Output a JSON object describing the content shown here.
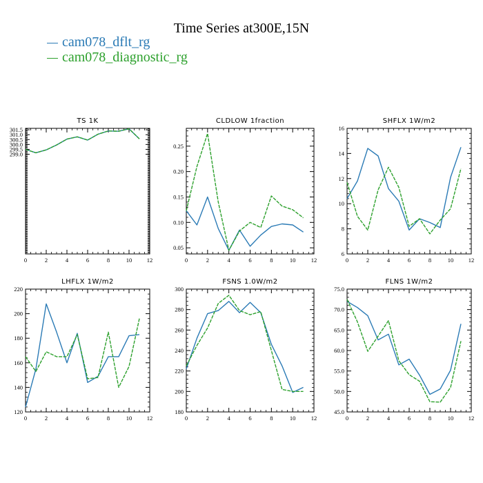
{
  "page_title": "Time Series at300E,15N",
  "colors": {
    "dflt": "#2a7ab5",
    "diag": "#2ca02c"
  },
  "legend": [
    {
      "label": "cam078_dflt_rg",
      "color": "#2a7ab5"
    },
    {
      "label": "cam078_diagnostic_rg",
      "color": "#2ca02c"
    }
  ],
  "chart_data": [
    {
      "type": "line",
      "title": "TS   1K",
      "x": [
        0,
        1,
        2,
        3,
        4,
        5,
        6,
        7,
        8,
        9,
        10,
        11
      ],
      "xlim": [
        0,
        12
      ],
      "xticks": [
        0,
        2,
        4,
        6,
        8,
        10,
        12
      ],
      "xtick_labels": [
        "0",
        "2",
        "4",
        "6",
        "8",
        "10",
        "12"
      ],
      "ylim": [
        288.8,
        301.65
      ],
      "yticks": [
        299.0,
        299.5,
        300.0,
        300.5,
        301.0,
        301.5
      ],
      "ytick_labels": [
        "299.0",
        "299.5",
        "300.0",
        "300.5",
        "301.0",
        "301.5"
      ],
      "series": [
        {
          "name": "cam078_dflt_rg",
          "values": [
            299.5,
            299.15,
            299.45,
            299.95,
            300.55,
            300.78,
            300.45,
            301.05,
            301.38,
            301.35,
            301.6,
            300.58
          ]
        },
        {
          "name": "cam078_diagnostic_rg",
          "values": [
            299.5,
            299.15,
            299.45,
            299.95,
            300.55,
            300.78,
            300.45,
            301.05,
            301.38,
            301.35,
            301.6,
            300.58
          ]
        }
      ]
    },
    {
      "type": "line",
      "title": "CLDLOW   1fraction",
      "x": [
        0,
        1,
        2,
        3,
        4,
        5,
        6,
        7,
        8,
        9,
        10,
        11
      ],
      "xlim": [
        0,
        12
      ],
      "xticks": [
        0,
        2,
        4,
        6,
        8,
        10,
        12
      ],
      "xtick_labels": [
        "0",
        "2",
        "4",
        "6",
        "8",
        "10",
        "12"
      ],
      "ylim": [
        0.038,
        0.285
      ],
      "yticks": [
        0.05,
        0.1,
        0.15,
        0.2,
        0.25
      ],
      "ytick_labels": [
        "0.05",
        "0.10",
        "0.15",
        "0.20",
        "0.25"
      ],
      "series": [
        {
          "name": "cam078_dflt_rg",
          "values": [
            0.123,
            0.095,
            0.15,
            0.088,
            0.045,
            0.085,
            0.053,
            0.075,
            0.092,
            0.097,
            0.095,
            0.081
          ]
        },
        {
          "name": "cam078_diagnostic_rg",
          "values": [
            0.123,
            0.21,
            0.275,
            0.14,
            0.045,
            0.083,
            0.1,
            0.09,
            0.152,
            0.132,
            0.125,
            0.109
          ]
        }
      ]
    },
    {
      "type": "line",
      "title": "SHFLX   1W/m2",
      "x": [
        0,
        1,
        2,
        3,
        4,
        5,
        6,
        7,
        8,
        9,
        10,
        11
      ],
      "xlim": [
        0,
        12
      ],
      "xticks": [
        0,
        2,
        4,
        6,
        8,
        10,
        12
      ],
      "xtick_labels": [
        "0",
        "2",
        "4",
        "6",
        "8",
        "10",
        "12"
      ],
      "ylim": [
        6,
        16
      ],
      "yticks": [
        6,
        8,
        10,
        12,
        14,
        16
      ],
      "ytick_labels": [
        "6",
        "8",
        "10",
        "12",
        "14",
        "16"
      ],
      "series": [
        {
          "name": "cam078_dflt_rg",
          "values": [
            10.4,
            11.8,
            14.4,
            13.8,
            11.2,
            10.2,
            7.9,
            8.8,
            8.5,
            8.1,
            12.1,
            14.5
          ]
        },
        {
          "name": "cam078_diagnostic_rg",
          "values": [
            11.7,
            9.0,
            7.9,
            11.1,
            12.9,
            11.3,
            8.2,
            8.8,
            7.6,
            8.7,
            9.6,
            12.8
          ]
        }
      ]
    },
    {
      "type": "line",
      "title": "LHFLX   1W/m2",
      "x": [
        0,
        1,
        2,
        3,
        4,
        5,
        6,
        7,
        8,
        9,
        10,
        11
      ],
      "xlim": [
        0,
        12
      ],
      "xticks": [
        0,
        2,
        4,
        6,
        8,
        10,
        12
      ],
      "xtick_labels": [
        "0",
        "2",
        "4",
        "6",
        "8",
        "10",
        "12"
      ],
      "ylim": [
        120,
        220
      ],
      "yticks": [
        120,
        140,
        160,
        180,
        200,
        220
      ],
      "ytick_labels": [
        "120",
        "140",
        "160",
        "180",
        "200",
        "220"
      ],
      "series": [
        {
          "name": "cam078_dflt_rg",
          "values": [
            124,
            155,
            208,
            185,
            160,
            184,
            144,
            149,
            165,
            165,
            182,
            183
          ]
        },
        {
          "name": "cam078_diagnostic_rg",
          "values": [
            165,
            153,
            169,
            165,
            165,
            183,
            147,
            148,
            185,
            140,
            157,
            196
          ]
        }
      ]
    },
    {
      "type": "line",
      "title": "FSNS   1.0W/m2",
      "x": [
        0,
        1,
        2,
        3,
        4,
        5,
        6,
        7,
        8,
        9,
        10,
        11
      ],
      "xlim": [
        0,
        12
      ],
      "xticks": [
        0,
        2,
        4,
        6,
        8,
        10,
        12
      ],
      "xtick_labels": [
        "0",
        "2",
        "4",
        "6",
        "8",
        "10",
        "12"
      ],
      "ylim": [
        180,
        300
      ],
      "yticks": [
        180,
        200,
        220,
        240,
        260,
        280,
        300
      ],
      "ytick_labels": [
        "180",
        "200",
        "220",
        "240",
        "260",
        "280",
        "300"
      ],
      "series": [
        {
          "name": "cam078_dflt_rg",
          "values": [
            222,
            252,
            276,
            279,
            288,
            277,
            287,
            277,
            246,
            225,
            199,
            204
          ]
        },
        {
          "name": "cam078_diagnostic_rg",
          "values": [
            225,
            245,
            262,
            286,
            294,
            279,
            275,
            278,
            240,
            202,
            200,
            200
          ]
        }
      ]
    },
    {
      "type": "line",
      "title": "FLNS   1W/m2",
      "x": [
        0,
        1,
        2,
        3,
        4,
        5,
        6,
        7,
        8,
        9,
        10,
        11
      ],
      "xlim": [
        0,
        12
      ],
      "xticks": [
        0,
        2,
        4,
        6,
        8,
        10,
        12
      ],
      "xtick_labels": [
        "0",
        "2",
        "4",
        "6",
        "8",
        "10",
        "12"
      ],
      "ylim": [
        45,
        75
      ],
      "yticks": [
        45,
        50,
        55,
        60,
        65,
        70,
        75
      ],
      "ytick_labels": [
        "45.0",
        "50.0",
        "55.0",
        "60.0",
        "65.0",
        "70.0",
        "75.0"
      ],
      "series": [
        {
          "name": "cam078_dflt_rg",
          "values": [
            72.0,
            70.5,
            68.5,
            62.6,
            64.0,
            56.5,
            57.9,
            54.0,
            49.3,
            50.6,
            55.2,
            66.5
          ]
        },
        {
          "name": "cam078_diagnostic_rg",
          "values": [
            72.5,
            67.0,
            59.8,
            63.5,
            67.3,
            57.5,
            54.1,
            52.5,
            47.5,
            47.4,
            51.0,
            62.3
          ]
        }
      ]
    }
  ]
}
